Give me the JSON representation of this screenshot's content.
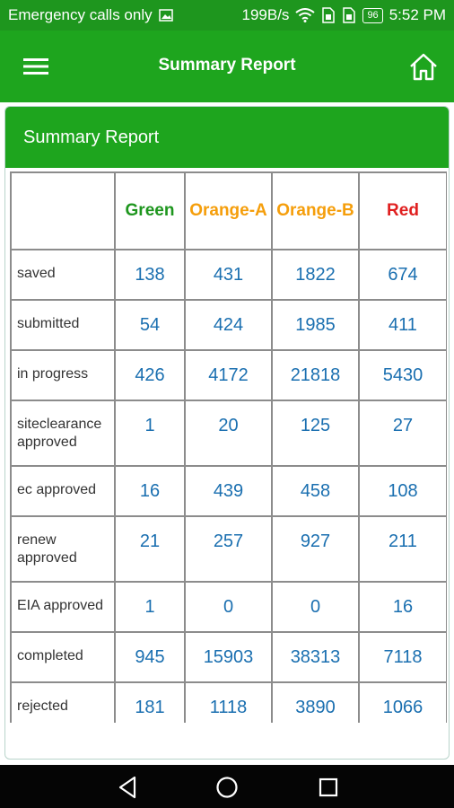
{
  "status_bar": {
    "carrier": "Emergency calls only",
    "speed": "199B/s",
    "battery": "96",
    "time": "5:52 PM"
  },
  "app_bar": {
    "title": "Summary Report",
    "menu_icon": "hamburger-menu-icon",
    "home_icon": "home-icon"
  },
  "card": {
    "header": "Summary Report"
  },
  "table": {
    "columns": [
      {
        "label": "",
        "color": "#333333"
      },
      {
        "label": "Green",
        "color": "#1e961e"
      },
      {
        "label": "Orange-A",
        "color": "#f59e0b"
      },
      {
        "label": "Orange-B",
        "color": "#f59e0b"
      },
      {
        "label": "Red",
        "color": "#e02020"
      }
    ],
    "rows": [
      {
        "label": "saved",
        "values": [
          "138",
          "431",
          "1822",
          "674"
        ]
      },
      {
        "label": "submitted",
        "values": [
          "54",
          "424",
          "1985",
          "411"
        ]
      },
      {
        "label": "in progress",
        "values": [
          "426",
          "4172",
          "21818",
          "5430"
        ]
      },
      {
        "label": "siteclearance approved",
        "values": [
          "1",
          "20",
          "125",
          "27"
        ]
      },
      {
        "label": "ec approved",
        "values": [
          "16",
          "439",
          "458",
          "108"
        ]
      },
      {
        "label": "renew approved",
        "values": [
          "21",
          "257",
          "927",
          "211"
        ]
      },
      {
        "label": "EIA approved",
        "values": [
          "1",
          "0",
          "0",
          "16"
        ]
      },
      {
        "label": "completed",
        "values": [
          "945",
          "15903",
          "38313",
          "7118"
        ]
      },
      {
        "label": "rejected",
        "values": [
          "181",
          "1118",
          "3890",
          "1066"
        ]
      }
    ]
  },
  "nav_bar": {
    "back_icon": "back-triangle-icon",
    "home_icon": "home-circle-icon",
    "recents_icon": "recents-square-icon"
  }
}
